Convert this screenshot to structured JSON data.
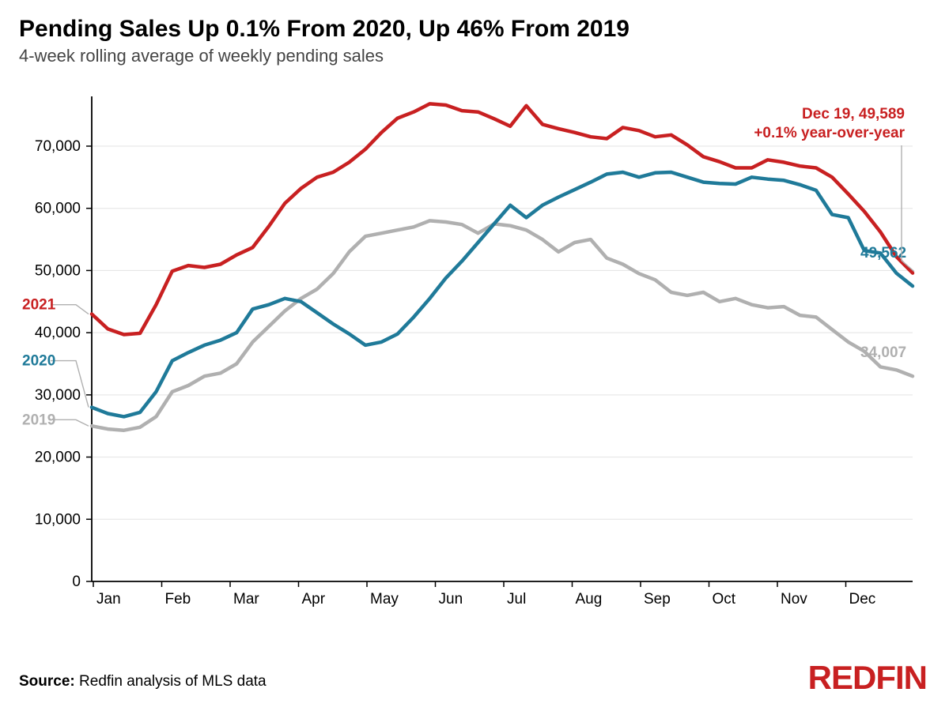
{
  "title": "Pending Sales Up 0.1% From 2020, Up 46% From 2019",
  "subtitle": "4-week rolling average of weekly pending sales",
  "source_label": "Source:",
  "source_text": "Redfin analysis of MLS data",
  "logo_text": "REDFIN",
  "chart": {
    "type": "line",
    "background_color": "#ffffff",
    "grid_color": "#e3e3e3",
    "axis_color": "#000000",
    "axis_font_color": "#000000",
    "axis_fontsize": 19,
    "line_width": 4.5,
    "ylim": [
      0,
      78000
    ],
    "ytick_step": 10000,
    "ytick_labels": [
      "0",
      "10,000",
      "20,000",
      "30,000",
      "40,000",
      "50,000",
      "60,000",
      "70,000"
    ],
    "x_labels": [
      "Jan",
      "Feb",
      "Mar",
      "Apr",
      "May",
      "Jun",
      "Jul",
      "Aug",
      "Sep",
      "Oct",
      "Nov",
      "Dec"
    ],
    "x_points_count": 52,
    "series": [
      {
        "name": "2019",
        "color": "#b0b0b0",
        "label": "2019",
        "label_x": 0,
        "label_y": 26000,
        "endpoint_label": "34,007",
        "values": [
          25000,
          24500,
          24300,
          24800,
          26500,
          30500,
          31500,
          33000,
          33500,
          35000,
          38500,
          41000,
          43500,
          45500,
          47000,
          49500,
          53000,
          55500,
          56000,
          56500,
          57000,
          58000,
          57800,
          57400,
          56000,
          57500,
          57200,
          56500,
          55000,
          53000,
          54500,
          55000,
          52000,
          51000,
          49500,
          48500,
          46500,
          46000,
          46500,
          45000,
          45500,
          44500,
          44000,
          44200,
          42800,
          42500,
          40500,
          38500,
          37000,
          34500,
          34007,
          33000
        ]
      },
      {
        "name": "2020",
        "color": "#1f7a99",
        "label": "2020",
        "label_x": 0,
        "label_y": 35500,
        "endpoint_label": "49,562",
        "values": [
          28000,
          27000,
          26500,
          27200,
          30500,
          35500,
          36800,
          38000,
          38800,
          40000,
          43800,
          44500,
          45500,
          45000,
          43200,
          41400,
          39800,
          38000,
          38500,
          39800,
          42500,
          45500,
          48800,
          51500,
          54500,
          57500,
          60500,
          58500,
          60500,
          61800,
          63000,
          64200,
          65500,
          65800,
          65000,
          65700,
          65800,
          65000,
          64200,
          64000,
          63900,
          65000,
          64700,
          64500,
          63800,
          62900,
          59000,
          58500,
          53200,
          52800,
          49562,
          47500
        ]
      },
      {
        "name": "2021",
        "color": "#c82021",
        "label": "2021",
        "label_x": 0,
        "label_y": 44500,
        "endpoint_label": "",
        "values": [
          43000,
          40600,
          39700,
          39900,
          44500,
          49900,
          50800,
          50500,
          51000,
          52500,
          53700,
          57100,
          60800,
          63200,
          65000,
          65800,
          67400,
          69500,
          72200,
          74500,
          75500,
          76800,
          76600,
          75700,
          75500,
          74400,
          73200,
          76500,
          73500,
          72800,
          72200,
          71500,
          71200,
          73000,
          72500,
          71500,
          71800,
          70200,
          68300,
          67500,
          66500,
          66500,
          67800,
          67400,
          66800,
          66500,
          65000,
          62300,
          59500,
          56200,
          52200,
          49589
        ]
      }
    ],
    "annotation": {
      "line1": "Dec 19, 49,589",
      "line2": "+0.1% year-over-year",
      "color": "#c82021",
      "leader_color": "#b0b0b0"
    }
  }
}
